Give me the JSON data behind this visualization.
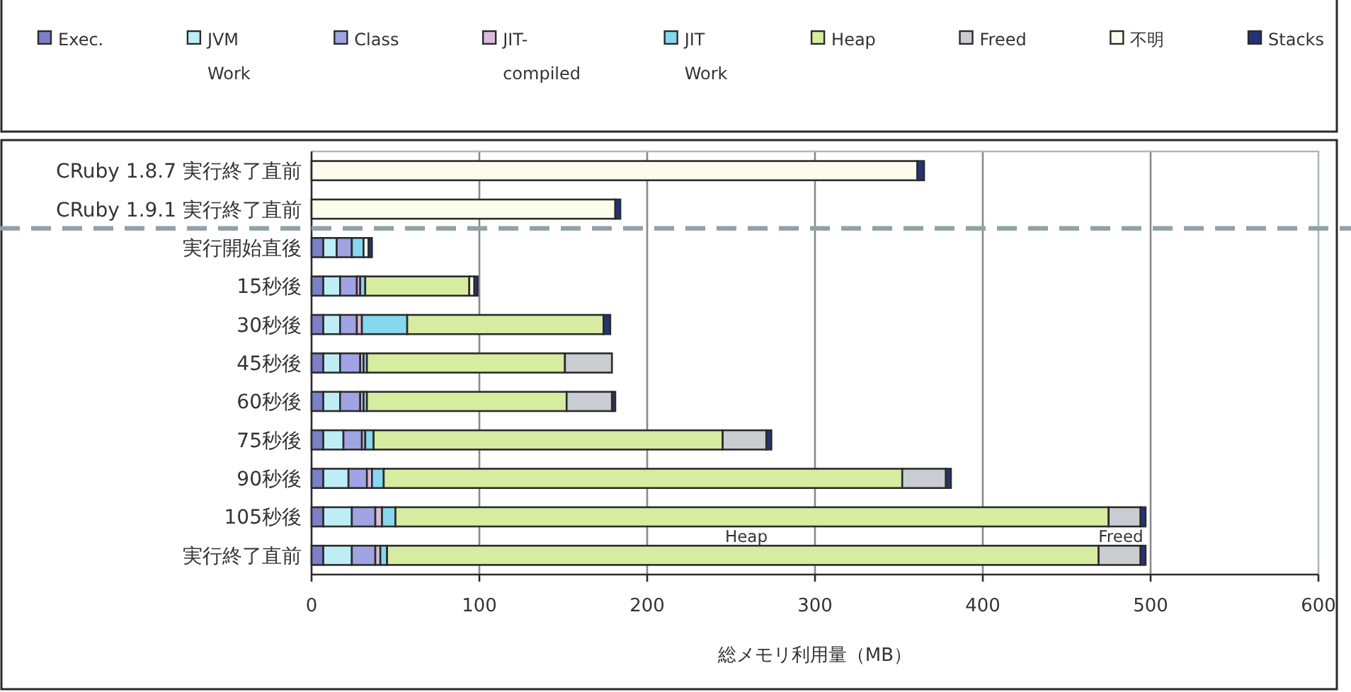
{
  "chart_data": {
    "type": "bar",
    "orientation": "horizontal",
    "stacked": true,
    "categories": [
      "CRuby 1.8.7 実行終了直前",
      "CRuby 1.9.1 実行終了直前",
      "実行開始直後",
      "15秒後",
      "30秒後",
      "45秒後",
      "60秒後",
      "75秒後",
      "90秒後",
      "105秒後",
      "実行終了直前"
    ],
    "series": [
      {
        "name": "Exec.",
        "color": "#7c80c8",
        "values": [
          null,
          null,
          7,
          7,
          7,
          7,
          7,
          7,
          7,
          7,
          7
        ]
      },
      {
        "name": "JVM Work",
        "color": "#bdeef6",
        "values": [
          null,
          null,
          8,
          10,
          10,
          10,
          10,
          12,
          15,
          17,
          17
        ]
      },
      {
        "name": "Class",
        "color": "#a0a4e4",
        "values": [
          null,
          null,
          9,
          10,
          10,
          12,
          12,
          11,
          11,
          14,
          14
        ]
      },
      {
        "name": "JIT-compiled",
        "color": "#d9bcd9",
        "values": [
          null,
          null,
          null,
          2,
          3,
          2,
          2,
          2,
          3,
          4,
          3
        ]
      },
      {
        "name": "JIT Work",
        "color": "#86d8ee",
        "values": [
          null,
          null,
          7,
          3,
          27,
          2,
          2,
          5,
          7,
          8,
          4
        ]
      },
      {
        "name": "Heap",
        "color": "#d6eca0",
        "values": [
          null,
          null,
          null,
          62,
          117,
          118,
          119,
          208,
          309,
          425,
          424
        ]
      },
      {
        "name": "Freed",
        "color": "#c9cdd2",
        "values": [
          null,
          null,
          null,
          null,
          null,
          28,
          27,
          26,
          26,
          19,
          25
        ]
      },
      {
        "name": "不明",
        "color": "#fcfcec",
        "values": [
          361,
          181,
          3,
          3,
          null,
          null,
          null,
          null,
          null,
          null,
          null
        ]
      },
      {
        "name": "Stacks",
        "color": "#23337a",
        "values": [
          4,
          3,
          2,
          2,
          4,
          null,
          2,
          3,
          3,
          3,
          3
        ]
      }
    ],
    "xlim": [
      0,
      600
    ],
    "xticks": [
      0,
      100,
      200,
      300,
      400,
      500,
      600
    ],
    "xlabel": "総メモリ利用量（MB）",
    "grid": "x",
    "legend": "top",
    "annotations": [
      "Heap",
      {
        "text": "Freed",
        "x": 494,
        "y": "実行終了直前"
      }
    ]
  }
}
